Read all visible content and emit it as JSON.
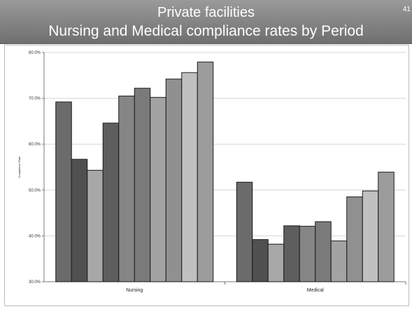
{
  "header": {
    "title_line1": "Private facilities",
    "title_line2": "Nursing and Medical compliance rates by Period",
    "page_number": "41"
  },
  "chart_data": {
    "type": "bar",
    "categories": [
      "Nursing",
      "Medical"
    ],
    "ylabel": "Compliance Rate",
    "ylim": [
      30,
      80
    ],
    "yticks": [
      "30.0%",
      "40.0%",
      "50.0%",
      "60.0%",
      "70.0%",
      "80.0%"
    ],
    "grid": true,
    "legend": "none",
    "series": [
      {
        "values": [
          69.2,
          51.7
        ],
        "color": "#6b6b6b"
      },
      {
        "values": [
          56.7,
          39.2
        ],
        "color": "#505050"
      },
      {
        "values": [
          54.3,
          38.2
        ],
        "color": "#a8a8a8"
      },
      {
        "values": [
          64.6,
          42.2
        ],
        "color": "#5e5e5e"
      },
      {
        "values": [
          70.5,
          42.1
        ],
        "color": "#858585"
      },
      {
        "values": [
          72.2,
          43.1
        ],
        "color": "#7a7a7a"
      },
      {
        "values": [
          70.2,
          38.9
        ],
        "color": "#a3a3a3"
      },
      {
        "values": [
          74.2,
          48.5
        ],
        "color": "#909090"
      },
      {
        "values": [
          75.6,
          49.8
        ],
        "color": "#c0c0c0"
      },
      {
        "values": [
          77.9,
          53.9
        ],
        "color": "#9c9c9c"
      }
    ]
  }
}
